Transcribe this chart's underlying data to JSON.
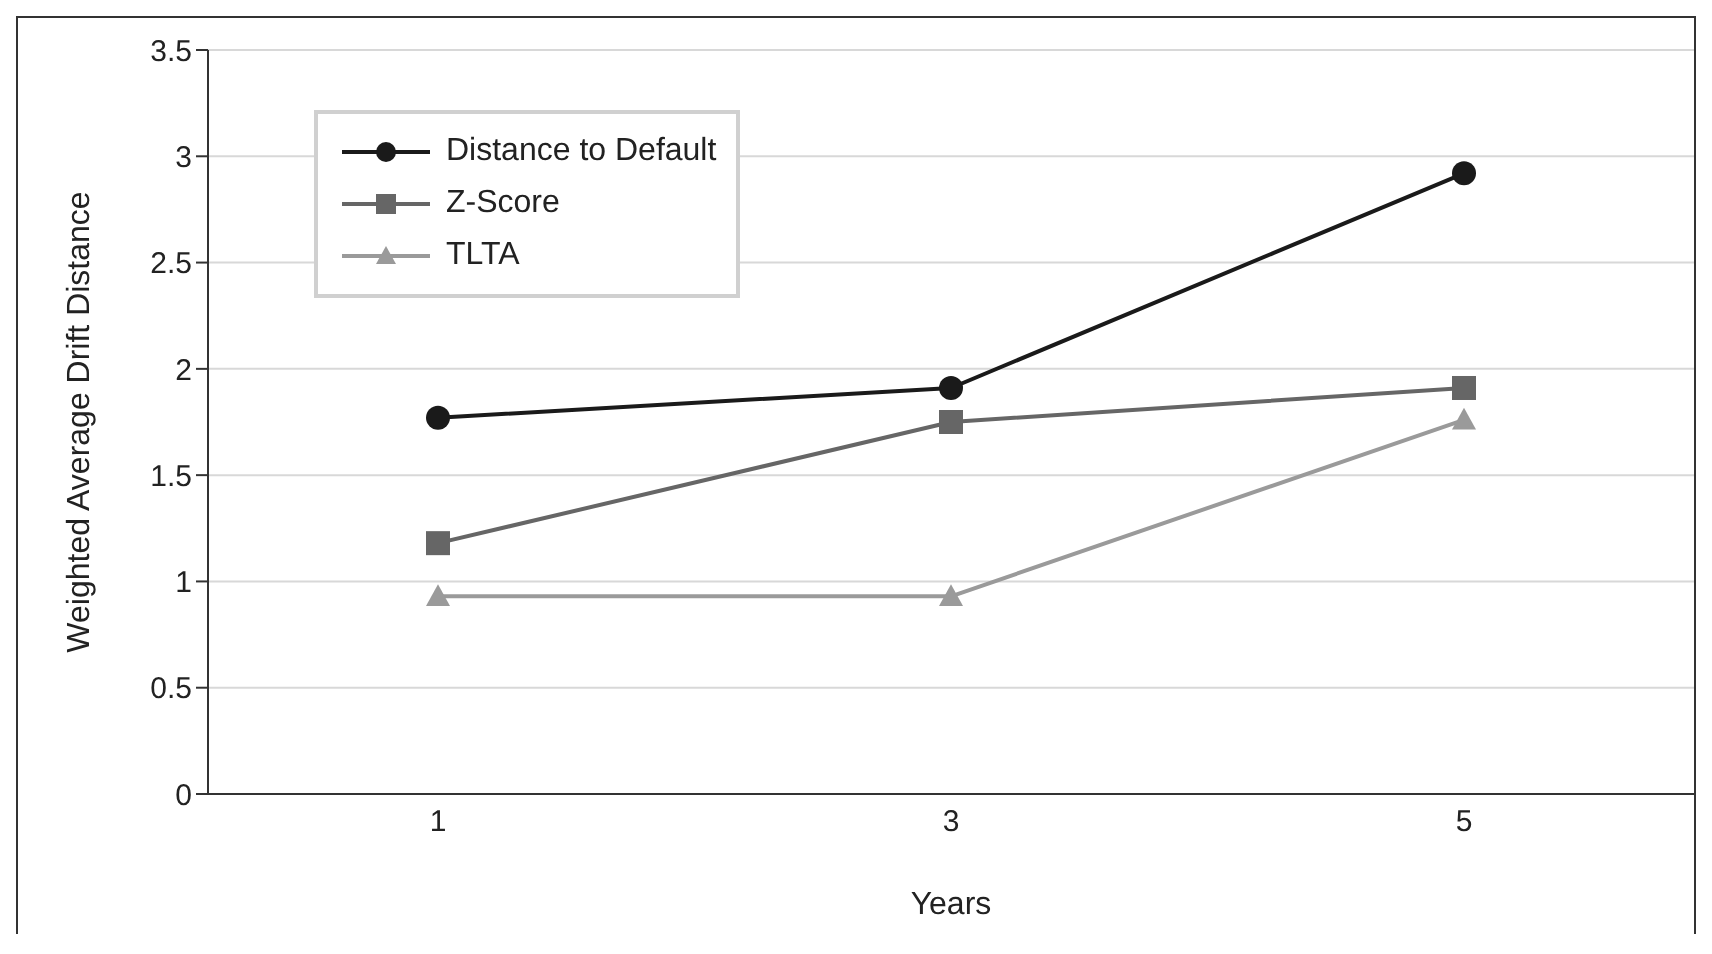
{
  "chart_data": {
    "type": "line",
    "xlabel": "Years",
    "ylabel": "Weighted Average Drift Distance",
    "categories": [
      "1",
      "3",
      "5"
    ],
    "series": [
      {
        "name": "Distance to Default",
        "color": "#1a1a1a",
        "marker": "circle",
        "values": [
          1.77,
          1.91,
          2.92
        ]
      },
      {
        "name": "Z-Score",
        "color": "#666666",
        "marker": "square",
        "values": [
          1.18,
          1.75,
          1.91
        ]
      },
      {
        "name": "TLTA",
        "color": "#9a9a9a",
        "marker": "triangle",
        "values": [
          0.93,
          0.93,
          1.76
        ]
      }
    ],
    "ylim": [
      0,
      3.5
    ],
    "yticks": [
      0,
      0.5,
      1,
      1.5,
      2,
      2.5,
      3,
      3.5
    ],
    "grid": "y",
    "legend": "top left"
  }
}
